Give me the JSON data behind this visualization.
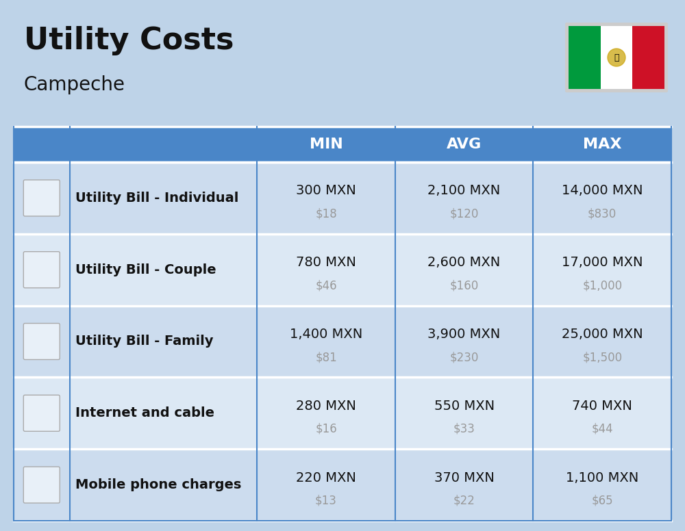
{
  "title": "Utility Costs",
  "subtitle": "Campeche",
  "background_color": "#bed3e8",
  "header_bg_color": "#4a86c8",
  "header_text_color": "#ffffff",
  "row_bg_color_light": "#ccdcee",
  "row_bg_color_alt": "#dce8f4",
  "title_color": "#111111",
  "subtitle_color": "#111111",
  "label_color": "#111111",
  "value_color": "#111111",
  "usd_color": "#999999",
  "headers": [
    "",
    "",
    "MIN",
    "AVG",
    "MAX"
  ],
  "rows": [
    {
      "label": "Utility Bill - Individual",
      "min_mxn": "300 MXN",
      "min_usd": "$18",
      "avg_mxn": "2,100 MXN",
      "avg_usd": "$120",
      "max_mxn": "14,000 MXN",
      "max_usd": "$830"
    },
    {
      "label": "Utility Bill - Couple",
      "min_mxn": "780 MXN",
      "min_usd": "$46",
      "avg_mxn": "2,600 MXN",
      "avg_usd": "$160",
      "max_mxn": "17,000 MXN",
      "max_usd": "$1,000"
    },
    {
      "label": "Utility Bill - Family",
      "min_mxn": "1,400 MXN",
      "min_usd": "$81",
      "avg_mxn": "3,900 MXN",
      "avg_usd": "$230",
      "max_mxn": "25,000 MXN",
      "max_usd": "$1,500"
    },
    {
      "label": "Internet and cable",
      "min_mxn": "280 MXN",
      "min_usd": "$16",
      "avg_mxn": "550 MXN",
      "avg_usd": "$33",
      "max_mxn": "740 MXN",
      "max_usd": "$44"
    },
    {
      "label": "Mobile phone charges",
      "min_mxn": "220 MXN",
      "min_usd": "$13",
      "avg_mxn": "370 MXN",
      "avg_usd": "$22",
      "max_mxn": "1,100 MXN",
      "max_usd": "$65"
    }
  ],
  "fig_width": 10.0,
  "fig_height": 7.76,
  "flag_green": "#009a3d",
  "flag_white": "#ffffff",
  "flag_red": "#ce1126"
}
